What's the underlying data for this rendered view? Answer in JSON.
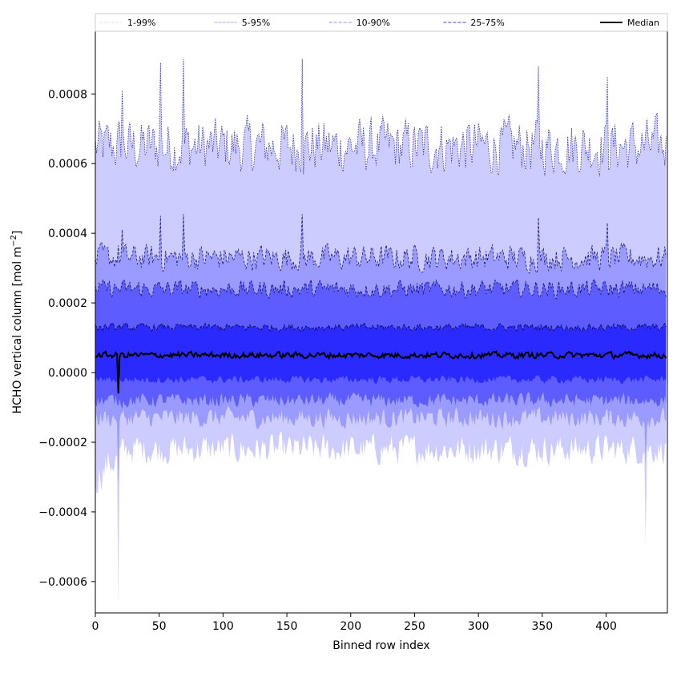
{
  "chart_data": {
    "type": "area",
    "xlabel": "Binned row index",
    "ylabel_main": "HCHO vertical column [mol m",
    "ylabel_sup": "−2",
    "ylabel_close": "]",
    "xlim": [
      0,
      448
    ],
    "ylim": [
      -0.00069,
      0.00098
    ],
    "x_ticks": [
      0,
      50,
      100,
      150,
      200,
      250,
      300,
      350,
      400
    ],
    "x_tick_labels": [
      "0",
      "50",
      "100",
      "150",
      "200",
      "250",
      "300",
      "350",
      "400"
    ],
    "y_ticks": [
      -0.0006,
      -0.0004,
      -0.0002,
      0.0,
      0.0002,
      0.0004,
      0.0006,
      0.0008
    ],
    "y_tick_labels": [
      "−0.0006",
      "−0.0004",
      "−0.0002",
      "0.0000",
      "0.0002",
      "0.0004",
      "0.0006",
      "0.0008"
    ],
    "legend_position": "top",
    "legend": [
      {
        "label": "1-99%",
        "style": "dotted",
        "color": "#c8c8ff"
      },
      {
        "label": "5-95%",
        "style": "dotted",
        "color": "#5a5ad8"
      },
      {
        "label": "10-90%",
        "style": "dashed",
        "color": "#8c8cff"
      },
      {
        "label": "25-75%",
        "style": "dashed",
        "color": "#3c3cdc"
      },
      {
        "label": "Median",
        "style": "solid",
        "color": "#000000"
      }
    ],
    "x_count": 448,
    "bands": [
      {
        "name": "1-99%",
        "lower_mean": -0.00022,
        "upper_mean": 0.00065,
        "color": "#ccccff"
      },
      {
        "name": "5-95%",
        "lower_mean": -0.00013,
        "upper_mean": 0.00033,
        "color": "#9a9aff"
      },
      {
        "name": "10-90%",
        "lower_mean": -8e-05,
        "upper_mean": 0.00024,
        "color": "#5c5cff"
      },
      {
        "name": "25-75%",
        "lower_mean": -2e-05,
        "upper_mean": 0.00013,
        "color": "#2a2aff"
      }
    ],
    "median_mean": 5e-05,
    "spikes": [
      {
        "x": 18,
        "median": -6e-05,
        "upper99": 0.00072,
        "lower99": -0.00061
      },
      {
        "x": 21,
        "upper99": 0.00081
      },
      {
        "x": 51,
        "upper99": 0.00089
      },
      {
        "x": 69,
        "upper99": 0.0009
      },
      {
        "x": 162,
        "upper99": 0.0009
      },
      {
        "x": 269,
        "upper99": 0.00064
      },
      {
        "x": 347,
        "upper99": 0.00088
      },
      {
        "x": 401,
        "upper99": 0.00085
      },
      {
        "x": 431,
        "lower99": -0.00049
      }
    ]
  }
}
